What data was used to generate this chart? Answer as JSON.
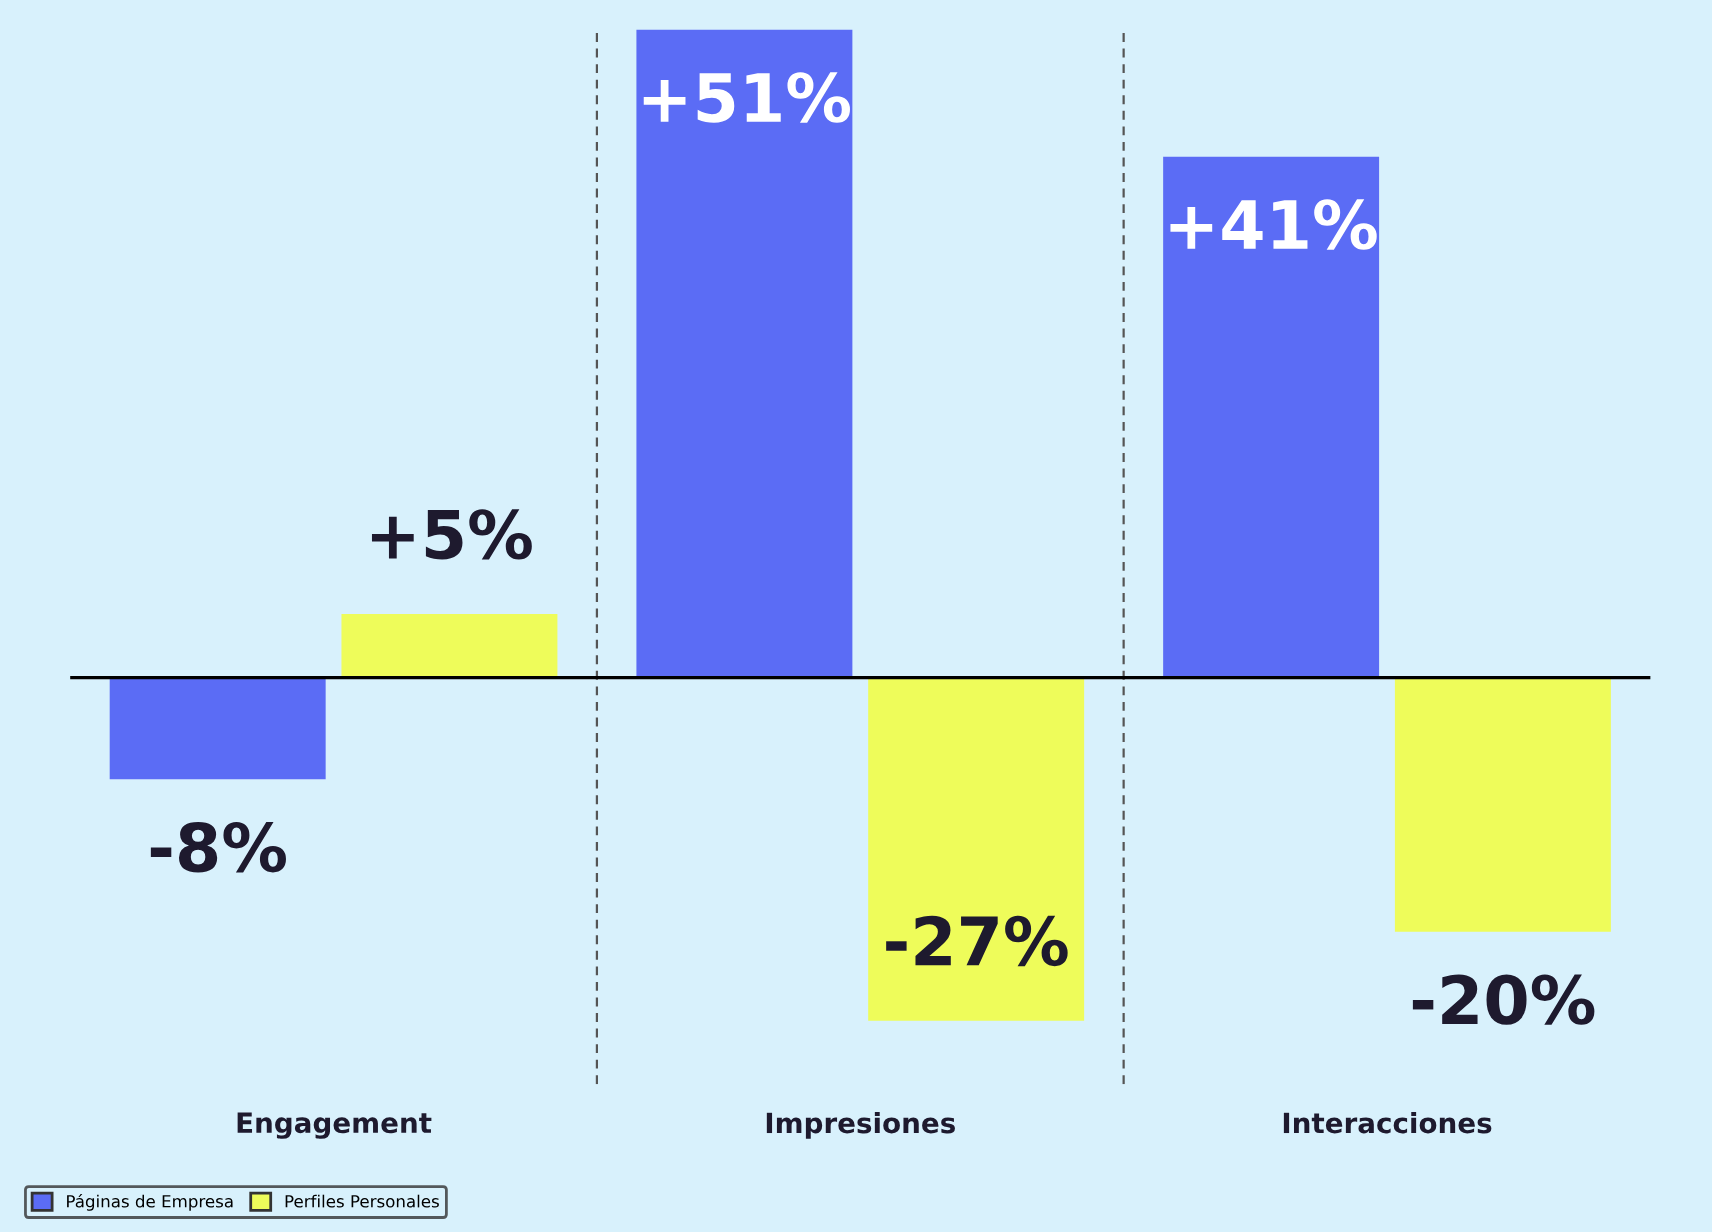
{
  "chart_data": {
    "type": "bar",
    "categories": [
      "Engagement",
      "Impresiones",
      "Interacciones"
    ],
    "series": [
      {
        "name": "Páginas de Empresa",
        "color": "#5b6cf5",
        "values": [
          -8,
          51,
          41
        ],
        "value_labels": [
          "-8%",
          "+51%",
          "+41%"
        ]
      },
      {
        "name": "Perfiles Personales",
        "color": "#eefc5a",
        "values": [
          5,
          -27,
          -20
        ],
        "value_labels": [
          "+5%",
          "-27%",
          "-20%"
        ]
      }
    ],
    "ylim": [
      -32,
      51
    ],
    "tick_labels": "x",
    "grid": "x",
    "legend": "bottom left"
  }
}
